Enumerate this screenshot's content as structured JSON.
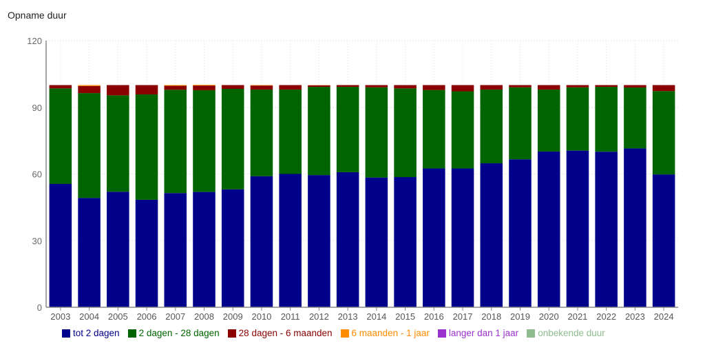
{
  "title": "Opname duur",
  "chart_data": {
    "type": "bar",
    "stacked": true,
    "categories": [
      "2003",
      "2004",
      "2005",
      "2006",
      "2007",
      "2008",
      "2009",
      "2010",
      "2011",
      "2012",
      "2013",
      "2014",
      "2015",
      "2016",
      "2017",
      "2018",
      "2019",
      "2020",
      "2021",
      "2022",
      "2023",
      "2024"
    ],
    "ylim": [
      0,
      120
    ],
    "yticks": [
      0,
      30,
      60,
      90,
      120
    ],
    "grid": true,
    "legend_position": "bottom",
    "series": [
      {
        "name": "tot 2 dagen",
        "color": "#00008B",
        "values": [
          55.5,
          49.2,
          52,
          48.4,
          51.4,
          51.9,
          53.1,
          59,
          60,
          59.5,
          60.8,
          58.4,
          58.6,
          62.5,
          62.5,
          64.8,
          66.6,
          70.1,
          70.5,
          70,
          71.5,
          59.8
        ]
      },
      {
        "name": "2 dagen - 28 dagen",
        "color": "#006400",
        "values": [
          43,
          47.2,
          43.4,
          47.4,
          46.5,
          45.8,
          45.2,
          39,
          38,
          39.7,
          38.4,
          40.6,
          39.9,
          35.3,
          34.7,
          33.2,
          32.4,
          27.9,
          28.5,
          29.2,
          27.4,
          37.5
        ]
      },
      {
        "name": "28 dagen - 6 maanden",
        "color": "#8B0000",
        "values": [
          1.5,
          3.2,
          4.6,
          4.2,
          1.8,
          2.1,
          1.7,
          1.8,
          2,
          0.7,
          0.8,
          1,
          1.5,
          2.2,
          2.8,
          2,
          1,
          2,
          1,
          0.8,
          1.1,
          2.7
        ]
      },
      {
        "name": "6 maanden - 1 jaar",
        "color": "#FF8C00",
        "values": [
          0,
          0.4,
          0,
          0,
          0.3,
          0.3,
          0,
          0.2,
          0,
          0.1,
          0,
          0,
          0,
          0,
          0,
          0,
          0,
          0,
          0,
          0,
          0,
          0
        ]
      },
      {
        "name": "langer dan 1 jaar",
        "color": "#9932CC",
        "values": [
          0,
          0,
          0,
          0,
          0,
          0,
          0,
          0,
          0,
          0,
          0,
          0,
          0,
          0,
          0,
          0,
          0,
          0,
          0,
          0,
          0,
          0
        ]
      },
      {
        "name": "onbekende duur",
        "color": "#8FBC8F",
        "values": [
          0,
          0,
          0,
          0,
          0,
          0,
          0,
          0,
          0,
          0,
          0,
          0,
          0,
          0,
          0,
          0,
          0,
          0,
          0,
          0,
          0,
          0
        ]
      }
    ]
  }
}
